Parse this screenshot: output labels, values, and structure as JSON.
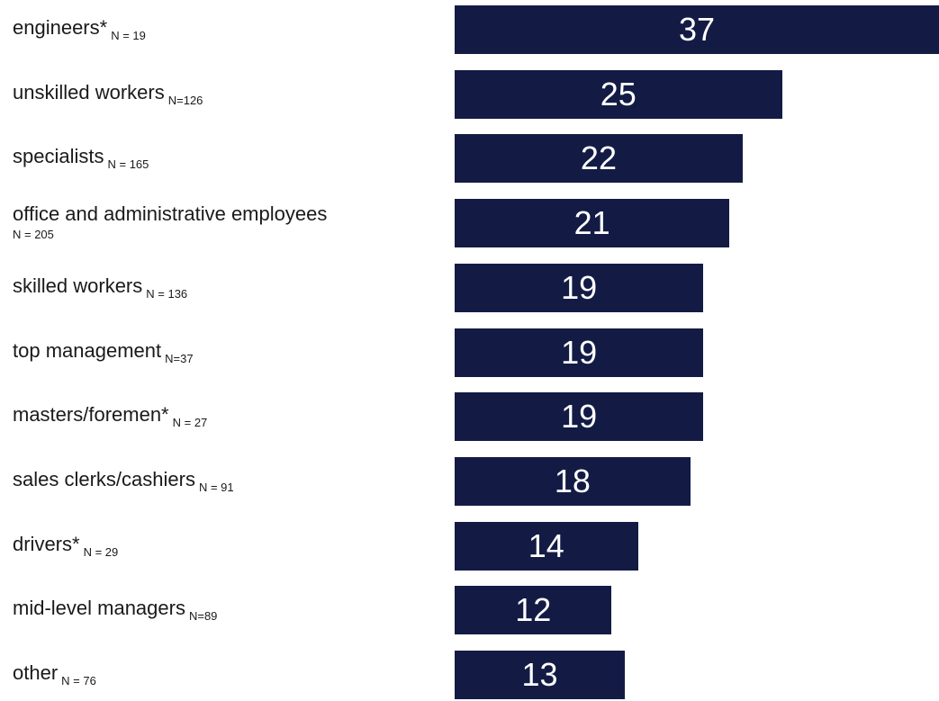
{
  "chart_data": {
    "type": "bar",
    "orientation": "horizontal",
    "categories": [
      "engineers*",
      "unskilled workers",
      "specialists",
      "office and administrative employees",
      "skilled workers",
      "top management",
      "masters/foremen*",
      "sales clerks/cashiers",
      "drivers*",
      "mid-level managers",
      "other"
    ],
    "sample_sizes": [
      "N = 19",
      "N=126",
      "N = 165",
      "N = 205",
      "N = 136",
      "N=37",
      "N = 27",
      "N = 91",
      "N = 29",
      "N=89",
      "N = 76"
    ],
    "values": [
      37,
      25,
      22,
      21,
      19,
      19,
      19,
      18,
      14,
      12,
      13
    ],
    "data_labels": [
      "37",
      "25",
      "22",
      "21",
      "19",
      "19",
      "19",
      "18",
      "14",
      "12",
      "13"
    ],
    "title": "",
    "xlabel": "",
    "ylabel": "",
    "grid": false,
    "legend": "none",
    "bar_color": "#131b45",
    "label_color": "#ffffff"
  }
}
